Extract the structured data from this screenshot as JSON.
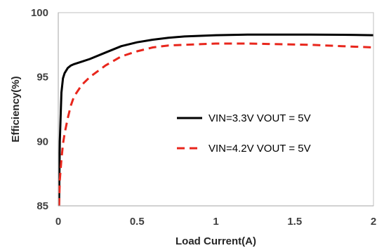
{
  "chart_data": {
    "type": "line",
    "xlabel": "Load Current(A)",
    "ylabel": "Efficiency(%)",
    "xlim": [
      0,
      2
    ],
    "ylim": [
      85,
      100
    ],
    "x_ticks": [
      "0",
      "0.5",
      "1",
      "1.5",
      "2"
    ],
    "y_ticks": [
      "85",
      "90",
      "95",
      "100"
    ],
    "grid": false,
    "legend_position": "center-right",
    "series": [
      {
        "name": "VIN=3.3V VOUT = 5V",
        "color": "#000000",
        "style": "solid",
        "x": [
          0.005,
          0.01,
          0.02,
          0.03,
          0.04,
          0.06,
          0.08,
          0.1,
          0.15,
          0.2,
          0.3,
          0.4,
          0.5,
          0.6,
          0.7,
          0.8,
          0.9,
          1.0,
          1.2,
          1.4,
          1.6,
          1.8,
          2.0
        ],
        "y": [
          85.0,
          90.0,
          93.8,
          94.9,
          95.3,
          95.7,
          95.9,
          96.0,
          96.2,
          96.4,
          96.9,
          97.4,
          97.7,
          97.9,
          98.05,
          98.15,
          98.2,
          98.25,
          98.3,
          98.3,
          98.3,
          98.28,
          98.25
        ]
      },
      {
        "name": "VIN=4.2V VOUT = 5V",
        "color": "#e8261c",
        "style": "dashed",
        "x": [
          0.005,
          0.01,
          0.02,
          0.03,
          0.04,
          0.06,
          0.08,
          0.1,
          0.15,
          0.2,
          0.3,
          0.4,
          0.5,
          0.6,
          0.7,
          0.8,
          0.9,
          1.0,
          1.2,
          1.4,
          1.6,
          1.8,
          2.0
        ],
        "y": [
          85.0,
          87.0,
          88.6,
          89.8,
          90.6,
          91.8,
          92.8,
          93.5,
          94.4,
          95.0,
          95.9,
          96.6,
          97.0,
          97.3,
          97.45,
          97.5,
          97.55,
          97.6,
          97.6,
          97.55,
          97.5,
          97.4,
          97.3
        ]
      }
    ]
  }
}
